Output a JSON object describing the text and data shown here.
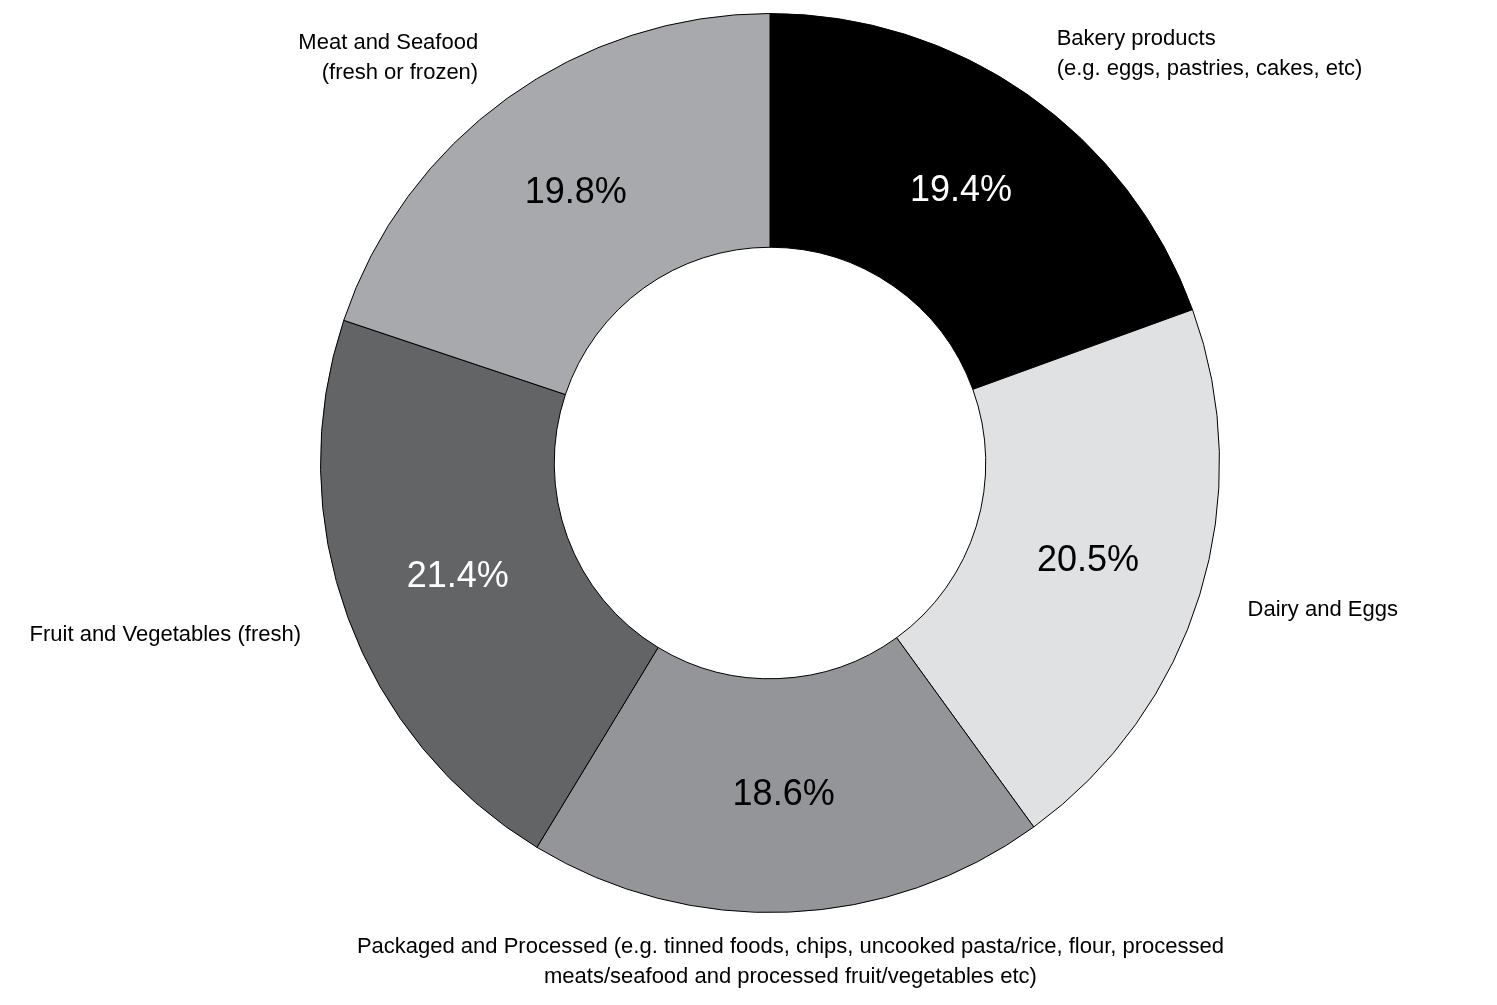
{
  "chart_data": {
    "type": "donut",
    "categories": [
      "Bakery products (e.g. eggs, pastries, cakes, etc)",
      "Dairy and Eggs",
      "Packaged and Processed (e.g. tinned foods, chips, uncooked pasta/rice, flour, processed meats/seafood and processed fruit/vegetables etc)",
      "Fruit and Vegetables (fresh)",
      "Meat and Seafood (fresh or frozen)"
    ],
    "values": [
      19.4,
      20.5,
      18.6,
      21.4,
      19.8
    ],
    "value_labels": [
      "19.4%",
      "20.5%",
      "18.6%",
      "21.4%",
      "19.8%"
    ],
    "colors": [
      "#000000",
      "#e0e1e3",
      "#939598",
      "#636466",
      "#a7a9ac"
    ],
    "legend": false
  }
}
